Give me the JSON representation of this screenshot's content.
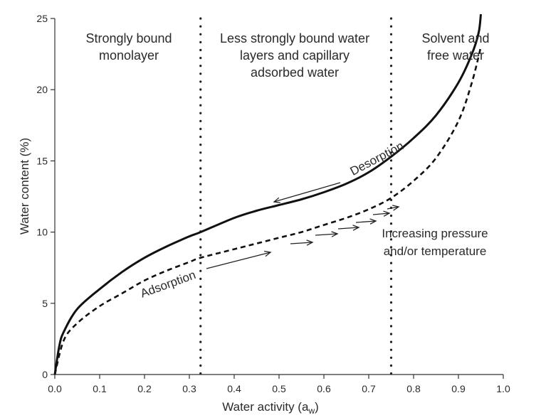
{
  "chart_data": {
    "type": "line",
    "xlabel": "Water activity (a",
    "xlabel_sub": "w",
    "xlabel_close": ")",
    "ylabel": "Water content (%)",
    "xlim": [
      0,
      1.0
    ],
    "ylim": [
      0,
      25
    ],
    "x_ticks": [
      "0.0",
      "0.1",
      "0.2",
      "0.3",
      "0.4",
      "0.5",
      "0.6",
      "0.7",
      "0.8",
      "0.9",
      "1.0"
    ],
    "y_ticks": [
      "0",
      "5",
      "10",
      "15",
      "20",
      "25"
    ],
    "grid": false,
    "zone_boundaries": [
      0.325,
      0.75
    ],
    "zones": [
      {
        "lines": [
          "Strongly bound",
          "monolayer"
        ]
      },
      {
        "lines": [
          "Less strongly bound water",
          "layers and capillary",
          "adsorbed water"
        ]
      },
      {
        "lines": [
          "Solvent and",
          "free water"
        ]
      }
    ],
    "series": [
      {
        "name": "Desorption",
        "style": "solid",
        "x": [
          0.0,
          0.01,
          0.02,
          0.05,
          0.1,
          0.15,
          0.2,
          0.25,
          0.3,
          0.325,
          0.4,
          0.45,
          0.5,
          0.55,
          0.6,
          0.65,
          0.7,
          0.75,
          0.8,
          0.85,
          0.9,
          0.93,
          0.945,
          0.95
        ],
        "y": [
          0.0,
          2.0,
          3.0,
          4.6,
          6.0,
          7.2,
          8.2,
          9.0,
          9.7,
          10.0,
          11.0,
          11.5,
          11.9,
          12.3,
          12.8,
          13.4,
          14.2,
          15.3,
          16.6,
          18.2,
          20.5,
          22.5,
          24.0,
          25.3
        ]
      },
      {
        "name": "Adsorption",
        "style": "dashed",
        "x": [
          0.0,
          0.02,
          0.05,
          0.1,
          0.15,
          0.2,
          0.25,
          0.3,
          0.325,
          0.4,
          0.45,
          0.5,
          0.55,
          0.6,
          0.65,
          0.7,
          0.75,
          0.8,
          0.85,
          0.9,
          0.93,
          0.95
        ],
        "y": [
          0.0,
          2.4,
          3.6,
          4.8,
          5.7,
          6.6,
          7.3,
          7.9,
          8.2,
          8.8,
          9.2,
          9.6,
          10.0,
          10.5,
          11.0,
          11.6,
          12.4,
          13.6,
          15.2,
          17.8,
          20.5,
          23.0
        ]
      }
    ],
    "annotations": {
      "desorption_label": "Desorption",
      "adsorption_label": "Adsorption",
      "pressure_line1": "Increasing pressure",
      "pressure_line2": "and/or temperature"
    }
  }
}
